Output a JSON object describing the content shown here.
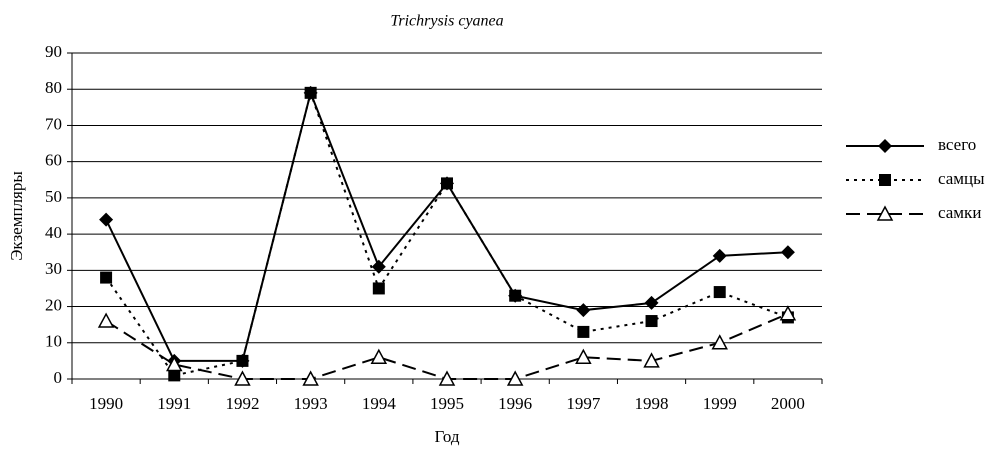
{
  "chart_data": {
    "type": "line",
    "title": "Trichrysis cyanea",
    "x_label": "Год",
    "y_label": "Экземпляры",
    "categories": [
      "1990",
      "1991",
      "1992",
      "1993",
      "1994",
      "1995",
      "1996",
      "1997",
      "1998",
      "1999",
      "2000"
    ],
    "series": [
      {
        "name": "всего",
        "color": "#000000",
        "marker": "diamond",
        "dash": "solid",
        "values": [
          44,
          5,
          5,
          79,
          31,
          54,
          23,
          19,
          21,
          34,
          35
        ]
      },
      {
        "name": "самцы",
        "color": "#000000",
        "marker": "square",
        "dash": "dotted",
        "values": [
          28,
          1,
          5,
          79,
          25,
          54,
          23,
          13,
          16,
          24,
          17
        ]
      },
      {
        "name": "самки",
        "color": "#000000",
        "marker": "triangle-open",
        "dash": "dashed",
        "values": [
          16,
          4,
          0,
          0,
          6,
          0,
          0,
          6,
          5,
          10,
          18
        ]
      }
    ],
    "ylim": [
      0,
      90
    ],
    "yticks": [
      0,
      10,
      20,
      30,
      40,
      50,
      60,
      70,
      80,
      90
    ],
    "grid": true,
    "legend": "right"
  }
}
